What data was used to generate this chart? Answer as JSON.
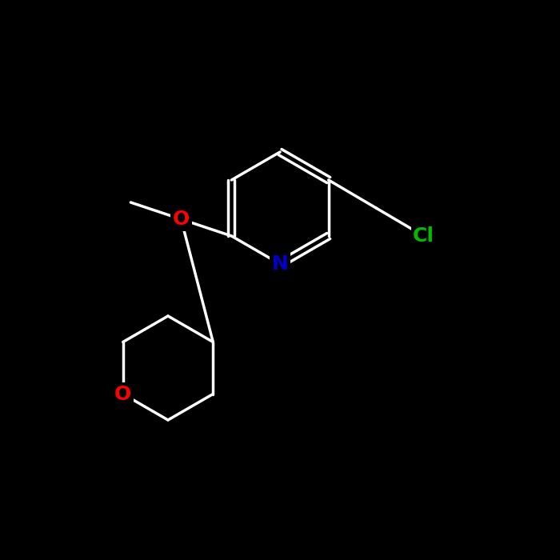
{
  "background_color": "#000000",
  "bond_color": "#ffffff",
  "bond_width": 2.5,
  "atom_colors": {
    "O": "#ff0000",
    "N": "#0000cc",
    "Cl": "#00bb00",
    "C": "#ffffff"
  },
  "font_size": 18,
  "font_weight": "bold"
}
